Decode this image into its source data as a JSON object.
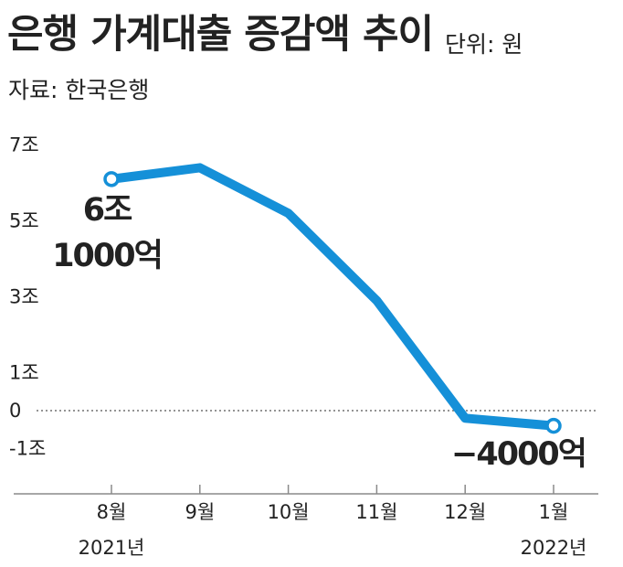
{
  "colors": {
    "line": "#1590d8",
    "text": "#222222",
    "axis": "#8a8a8a",
    "zero_line": "#555555",
    "marker_fill": "#ffffff"
  },
  "chart_data": {
    "type": "line",
    "title": "은행 가계대출 증감액 추이",
    "unit_label": "단위: 원",
    "source_label": "자료: 한국은행",
    "categories": [
      "8월",
      "9월",
      "10월",
      "11월",
      "12월",
      "1월"
    ],
    "category_years": [
      "2021년",
      "",
      "",
      "",
      "",
      "2022년"
    ],
    "series": [
      {
        "values": [
          6.1,
          6.4,
          5.2,
          2.9,
          -0.2,
          -0.4
        ]
      }
    ],
    "yticks": [
      7,
      5,
      3,
      1,
      0,
      -1
    ],
    "ytick_labels": [
      "7조",
      "5조",
      "3조",
      "1조",
      "0",
      "-1조"
    ],
    "ylim": [
      -2.2,
      7.5
    ],
    "reference_line": 0,
    "grid": false,
    "legend": "none",
    "highlighted_points": [
      0,
      5
    ],
    "annotations": [
      {
        "point": 0,
        "lines": [
          "6조",
          "1000억"
        ]
      },
      {
        "point": 5,
        "lines": [
          "−4000억"
        ]
      }
    ]
  }
}
